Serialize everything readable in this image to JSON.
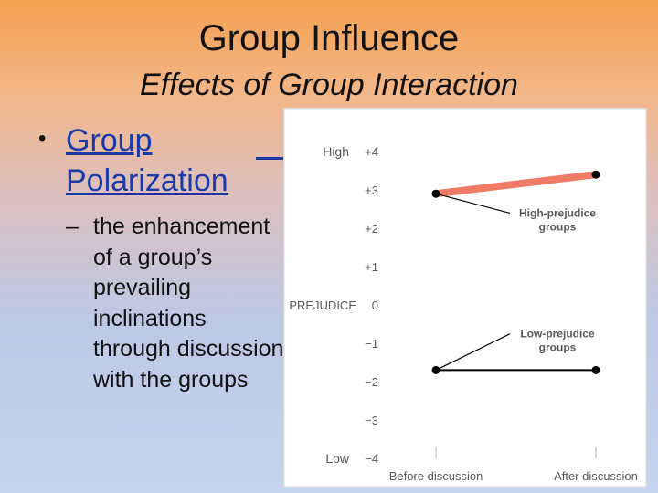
{
  "slide": {
    "title": "Group Influence",
    "subtitle": "Effects of Group Interaction",
    "bullet": "Group Polarization",
    "sub_bullet": "the enhancement of a group’s prevailing inclinations through discussion with the groups"
  },
  "chart_data": {
    "type": "line",
    "title": "",
    "xlabel": "",
    "ylabel": "PREJUDICE",
    "categories": [
      "Before discussion",
      "After discussion"
    ],
    "ylim": [
      -4,
      4
    ],
    "yticks": [
      {
        "value": 4,
        "label": "+4"
      },
      {
        "value": 3,
        "label": "+3"
      },
      {
        "value": 2,
        "label": "+2"
      },
      {
        "value": 1,
        "label": "+1"
      },
      {
        "value": 0,
        "label": "0"
      },
      {
        "value": -1,
        "label": "−1"
      },
      {
        "value": -2,
        "label": "−2"
      },
      {
        "value": -3,
        "label": "−3"
      },
      {
        "value": -4,
        "label": "−4"
      }
    ],
    "y_high_label": "High",
    "y_low_label": "Low",
    "series": [
      {
        "name": "High-prejudice groups",
        "values": [
          2.9,
          3.4
        ],
        "color": "#ef7a66"
      },
      {
        "name": "Low-prejudice groups",
        "values": [
          -1.7,
          -1.7
        ],
        "color": "#000000"
      }
    ],
    "annotations": [
      {
        "series": 0,
        "lines": [
          "High-prejudice",
          "groups"
        ]
      },
      {
        "series": 1,
        "lines": [
          "Low-prejudice",
          "groups"
        ]
      }
    ],
    "grid": false
  }
}
